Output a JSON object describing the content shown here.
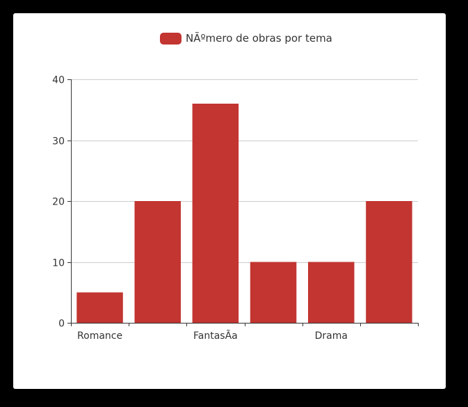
{
  "colors": {
    "bar": "#c23531",
    "grid": "#cccccc",
    "axis": "#333333",
    "background": "#ffffff",
    "frame": "#000000"
  },
  "chart_data": {
    "type": "bar",
    "title": "",
    "legend": [
      "NÃºmero de obras por tema"
    ],
    "legend_position": "top-center",
    "categories": [
      "Romance",
      "",
      "FantasÃa",
      "",
      "Drama",
      ""
    ],
    "series": [
      {
        "name": "NÃºmero de obras por tema",
        "values": [
          5,
          20,
          36,
          10,
          10,
          20
        ]
      }
    ],
    "xlabel": "",
    "ylabel": "",
    "ylim": [
      0,
      40
    ],
    "yticks": [
      0,
      10,
      20,
      30,
      40
    ],
    "grid": true
  }
}
